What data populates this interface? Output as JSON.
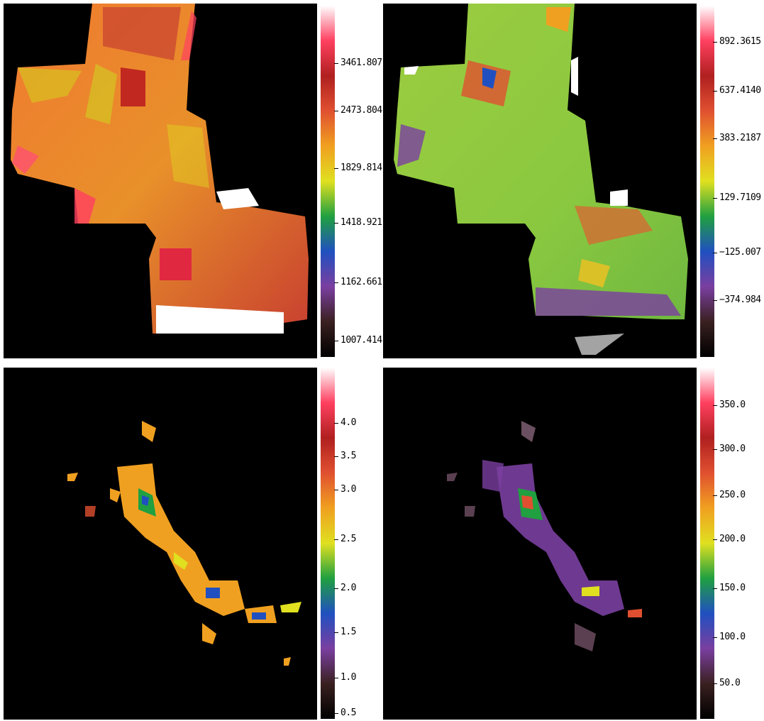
{
  "panels": [
    {
      "colorbar": {
        "colors": [
          "#000000",
          "#3a2020",
          "#7a3fa0",
          "#2050c0",
          "#20a040",
          "#e0e020",
          "#f0a020",
          "#e05030",
          "#b02020",
          "#ff4060",
          "#ffffff"
        ],
        "ticks": [
          "3461.807",
          "2473.804",
          "1829.814",
          "1418.921",
          "1162.661",
          "1007.414"
        ]
      }
    },
    {
      "colorbar": {
        "colors": [
          "#000000",
          "#3a2020",
          "#7a3fa0",
          "#2050c0",
          "#20a040",
          "#e0e020",
          "#f0a020",
          "#e05030",
          "#b02020",
          "#ff4060",
          "#ffffff"
        ],
        "ticks": [
          "892.3615",
          "637.4140",
          "383.2187",
          "129.7109",
          "−125.007",
          "−374.984"
        ]
      }
    },
    {
      "colorbar": {
        "colors": [
          "#000000",
          "#3a2020",
          "#7a3fa0",
          "#2050c0",
          "#20a040",
          "#e0e020",
          "#f0a020",
          "#e05030",
          "#b02020",
          "#ff4060",
          "#ffffff"
        ],
        "ticks": [
          "4.0",
          "3.5",
          "3.0",
          "2.5",
          "2.0",
          "1.5",
          "1.0",
          "0.5"
        ]
      }
    },
    {
      "colorbar": {
        "colors": [
          "#000000",
          "#3a2020",
          "#7a3fa0",
          "#2050c0",
          "#20a040",
          "#e0e020",
          "#f0a020",
          "#e05030",
          "#b02020",
          "#ff4060",
          "#ffffff"
        ],
        "ticks": [
          "350.0",
          "300.0",
          "250.0",
          "200.0",
          "150.0",
          "100.0",
          "50.0"
        ]
      }
    }
  ]
}
